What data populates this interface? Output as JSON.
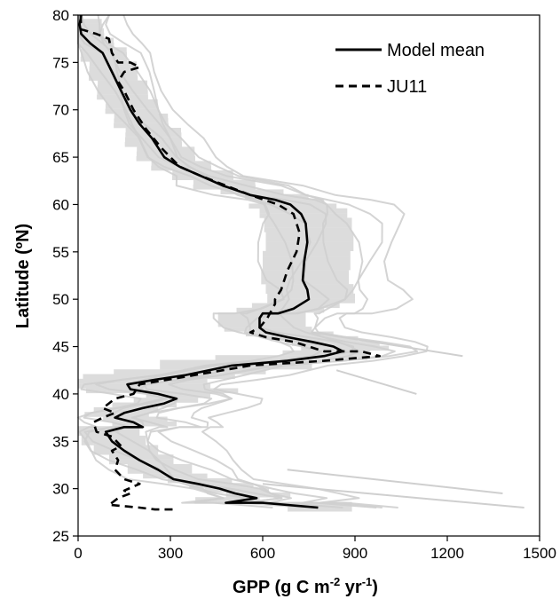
{
  "chart_data": {
    "type": "line",
    "xlabel": "GPP (g C m",
    "xlabel_sup1": "-2",
    "xlabel_mid": " yr",
    "xlabel_sup2": "-1",
    "xlabel_end": ")",
    "ylabel": "Latitude (ºN)",
    "xlim": [
      0,
      1500
    ],
    "ylim": [
      25,
      80
    ],
    "xticks": [
      "0",
      "300",
      "600",
      "900",
      "1200",
      "1500"
    ],
    "yticks": [
      "25",
      "30",
      "35",
      "40",
      "45",
      "50",
      "55",
      "60",
      "65",
      "70",
      "75",
      "80"
    ],
    "xtick_values": [
      0,
      300,
      600,
      900,
      1200,
      1500
    ],
    "ytick_values": [
      25,
      30,
      35,
      40,
      45,
      50,
      55,
      60,
      65,
      70,
      75,
      80
    ],
    "legend_position": "top-right",
    "legend": [
      {
        "label": "Model mean",
        "style": "solid"
      },
      {
        "label": "JU11",
        "style": "dashed"
      }
    ],
    "colors": {
      "mean": "#000000",
      "ju11": "#000000",
      "models": "#cfcfcf",
      "band": "#dcdcdc"
    },
    "series": [
      {
        "name": "Model mean",
        "points": [
          [
            10,
            80
          ],
          [
            5,
            79
          ],
          [
            10,
            78
          ],
          [
            40,
            77
          ],
          [
            80,
            76
          ],
          [
            110,
            74
          ],
          [
            140,
            72
          ],
          [
            170,
            70
          ],
          [
            200,
            68.5
          ],
          [
            240,
            67
          ],
          [
            280,
            65
          ],
          [
            330,
            64
          ],
          [
            400,
            63
          ],
          [
            470,
            62
          ],
          [
            560,
            61
          ],
          [
            640,
            60.5
          ],
          [
            690,
            60
          ],
          [
            725,
            59
          ],
          [
            740,
            58
          ],
          [
            745,
            56
          ],
          [
            735,
            54
          ],
          [
            730,
            52
          ],
          [
            745,
            51
          ],
          [
            750,
            50
          ],
          [
            700,
            49
          ],
          [
            650,
            48.5
          ],
          [
            600,
            48.5
          ],
          [
            590,
            48
          ],
          [
            590,
            47
          ],
          [
            610,
            46.5
          ],
          [
            680,
            46
          ],
          [
            760,
            45.5
          ],
          [
            830,
            45
          ],
          [
            860,
            44.5
          ],
          [
            800,
            44
          ],
          [
            680,
            43.5
          ],
          [
            500,
            43
          ],
          [
            350,
            42
          ],
          [
            250,
            41.5
          ],
          [
            160,
            41
          ],
          [
            170,
            40.5
          ],
          [
            260,
            40
          ],
          [
            320,
            39.5
          ],
          [
            280,
            39
          ],
          [
            210,
            38.5
          ],
          [
            150,
            38
          ],
          [
            120,
            37.5
          ],
          [
            180,
            37
          ],
          [
            210,
            36.5
          ],
          [
            150,
            36.5
          ],
          [
            90,
            36
          ],
          [
            110,
            35
          ],
          [
            150,
            34
          ],
          [
            200,
            33
          ],
          [
            260,
            32
          ],
          [
            310,
            31
          ],
          [
            390,
            30.5
          ],
          [
            460,
            30
          ],
          [
            510,
            29.5
          ],
          [
            580,
            29
          ],
          [
            480,
            28.5
          ],
          [
            600,
            28.5
          ],
          [
            780,
            28
          ]
        ]
      },
      {
        "name": "JU11",
        "points": [
          [
            8,
            80
          ],
          [
            10,
            78.5
          ],
          [
            60,
            78
          ],
          [
            100,
            77.5
          ],
          [
            110,
            76
          ],
          [
            130,
            75
          ],
          [
            170,
            75
          ],
          [
            200,
            74.5
          ],
          [
            150,
            74
          ],
          [
            130,
            73
          ],
          [
            150,
            72
          ],
          [
            180,
            70
          ],
          [
            220,
            68
          ],
          [
            270,
            66
          ],
          [
            330,
            64
          ],
          [
            400,
            63
          ],
          [
            480,
            62
          ],
          [
            560,
            61
          ],
          [
            650,
            60
          ],
          [
            700,
            59
          ],
          [
            720,
            57
          ],
          [
            710,
            55
          ],
          [
            680,
            53
          ],
          [
            660,
            51
          ],
          [
            640,
            50
          ],
          [
            640,
            49.5
          ],
          [
            615,
            48
          ],
          [
            590,
            47
          ],
          [
            560,
            46.5
          ],
          [
            610,
            46
          ],
          [
            700,
            45.5
          ],
          [
            800,
            44.5
          ],
          [
            920,
            44.5
          ],
          [
            980,
            44
          ],
          [
            800,
            43.5
          ],
          [
            560,
            43
          ],
          [
            380,
            42
          ],
          [
            200,
            41
          ],
          [
            180,
            40
          ],
          [
            120,
            39.5
          ],
          [
            100,
            39
          ],
          [
            80,
            38.5
          ],
          [
            120,
            38
          ],
          [
            80,
            37.5
          ],
          [
            50,
            37
          ],
          [
            60,
            36
          ],
          [
            110,
            35.5
          ],
          [
            140,
            34.5
          ],
          [
            110,
            34
          ],
          [
            130,
            33
          ],
          [
            120,
            32
          ],
          [
            150,
            31
          ],
          [
            200,
            30.5
          ],
          [
            150,
            29.8
          ],
          [
            170,
            29.5
          ],
          [
            130,
            29
          ],
          [
            110,
            28.5
          ],
          [
            100,
            28.3
          ],
          [
            200,
            28
          ],
          [
            250,
            27.8
          ],
          [
            320,
            27.8
          ]
        ]
      }
    ]
  }
}
